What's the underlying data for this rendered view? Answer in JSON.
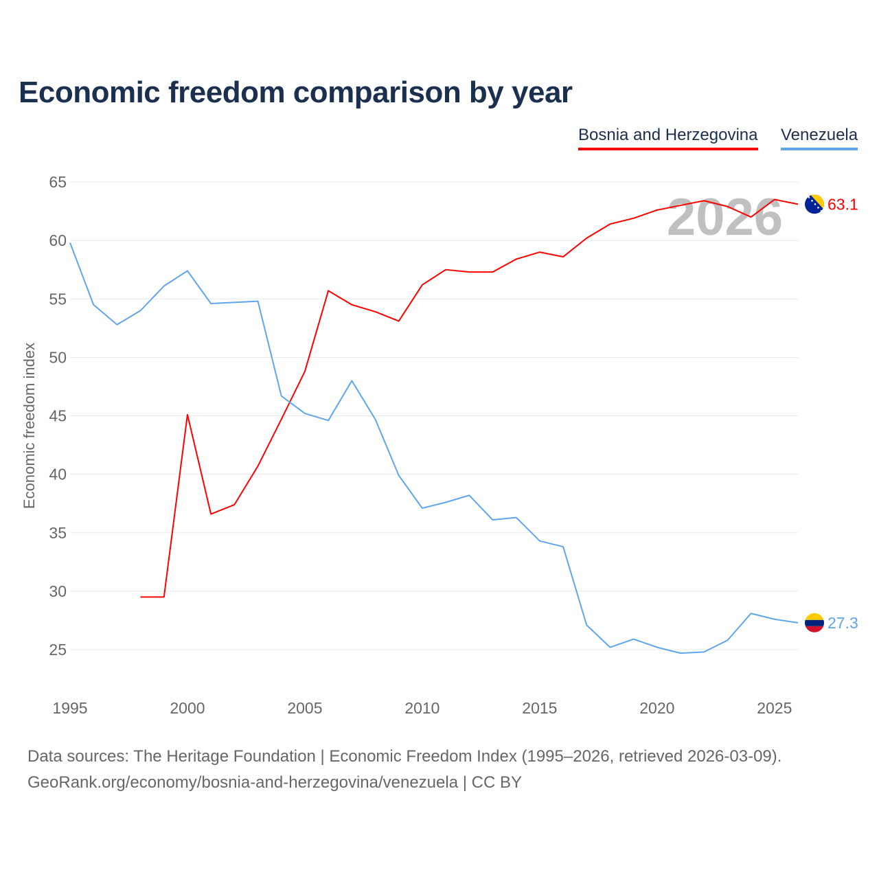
{
  "title": "Economic freedom comparison by year",
  "footer": {
    "line1": "Data sources: The Heritage Foundation | Economic Freedom Index (1995–2026, retrieved 2026-03-09).",
    "line2": "GeoRank.org/economy/bosnia-and-herzegovina/venezuela | CC BY"
  },
  "chart_data": {
    "type": "line",
    "title": "Economic freedom comparison by year",
    "xlabel": "",
    "ylabel": "Economic freedom index",
    "xlim": [
      1995,
      2026
    ],
    "ylim": [
      22,
      65
    ],
    "yticks": [
      25,
      30,
      35,
      40,
      45,
      50,
      55,
      60,
      65
    ],
    "xticks": [
      1995,
      2000,
      2005,
      2010,
      2015,
      2020,
      2025
    ],
    "grid": true,
    "legend_position": "top-right",
    "year_watermark": "2026",
    "series": [
      {
        "name": "Bosnia and Herzegovina",
        "color": "#ff0000",
        "end_label": "63.1",
        "flag": "bosnia-flag",
        "x": [
          1998,
          1999,
          2000,
          2001,
          2002,
          2003,
          2004,
          2005,
          2006,
          2007,
          2008,
          2009,
          2010,
          2011,
          2012,
          2013,
          2014,
          2015,
          2016,
          2017,
          2018,
          2019,
          2020,
          2021,
          2022,
          2023,
          2024,
          2025,
          2026
        ],
        "values": [
          29.5,
          29.5,
          45.1,
          36.6,
          37.4,
          40.7,
          44.7,
          48.8,
          55.7,
          54.5,
          53.9,
          53.1,
          56.2,
          57.5,
          57.3,
          57.3,
          58.4,
          59.0,
          58.6,
          60.2,
          61.4,
          61.9,
          62.6,
          63.0,
          63.4,
          62.9,
          62.0,
          63.5,
          63.1
        ]
      },
      {
        "name": "Venezuela",
        "color": "#5ea5ee",
        "end_label": "27.3",
        "flag": "venezuela-flag",
        "x": [
          1995,
          1996,
          1997,
          1998,
          1999,
          2000,
          2001,
          2002,
          2003,
          2004,
          2005,
          2006,
          2007,
          2008,
          2009,
          2010,
          2011,
          2012,
          2013,
          2014,
          2015,
          2016,
          2017,
          2018,
          2019,
          2020,
          2021,
          2022,
          2023,
          2024,
          2025,
          2026
        ],
        "values": [
          59.8,
          54.5,
          52.8,
          54.0,
          56.1,
          57.4,
          54.6,
          54.7,
          54.8,
          46.7,
          45.2,
          44.6,
          48.0,
          44.7,
          39.9,
          37.1,
          37.6,
          38.2,
          36.1,
          36.3,
          34.3,
          33.8,
          27.1,
          25.2,
          25.9,
          25.2,
          24.7,
          24.8,
          25.8,
          28.1,
          27.6,
          27.3
        ]
      }
    ]
  }
}
